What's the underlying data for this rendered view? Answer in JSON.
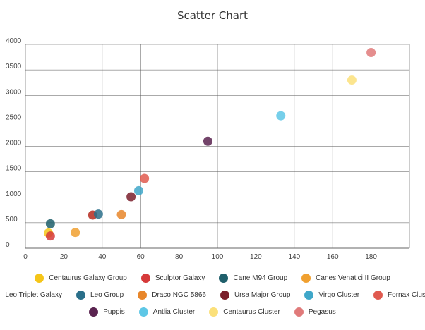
{
  "chart_data": {
    "type": "scatter",
    "title": "Scatter Chart",
    "xlabel": "",
    "ylabel": "",
    "xlim": [
      0,
      200
    ],
    "ylim": [
      0,
      4000
    ],
    "x_ticks": [
      0,
      20,
      40,
      60,
      80,
      100,
      120,
      140,
      160,
      180
    ],
    "y_ticks": [
      500,
      1000,
      1500,
      2000,
      2500,
      3000,
      3500,
      4000
    ],
    "grid": true,
    "legend_position": "bottom",
    "series": [
      {
        "name": "Centaurus Galaxy Group",
        "color": "#f5c518",
        "points": [
          {
            "x": 12,
            "y": 300
          }
        ]
      },
      {
        "name": "Sculptor Galaxy",
        "color": "#d63a3a",
        "points": [
          {
            "x": 13,
            "y": 240
          }
        ]
      },
      {
        "name": "Cane M94 Group",
        "color": "#1f5f6b",
        "points": [
          {
            "x": 13,
            "y": 480
          }
        ]
      },
      {
        "name": "Canes Venatici II Group",
        "color": "#f0a030",
        "points": [
          {
            "x": 26,
            "y": 310
          }
        ]
      },
      {
        "name": "Leo Triplet Galaxy",
        "color": "#b52a1e",
        "points": [
          {
            "x": 35,
            "y": 650
          }
        ]
      },
      {
        "name": "Leo Group",
        "color": "#2a6f8a",
        "points": [
          {
            "x": 38,
            "y": 670
          }
        ]
      },
      {
        "name": "Draco NGC 5866",
        "color": "#e8862a",
        "points": [
          {
            "x": 50,
            "y": 660
          }
        ]
      },
      {
        "name": "Ursa Major Group",
        "color": "#7a1f2b",
        "points": [
          {
            "x": 55,
            "y": 1010
          }
        ]
      },
      {
        "name": "Virgo Cluster",
        "color": "#3fa7c9",
        "points": [
          {
            "x": 59,
            "y": 1130
          }
        ]
      },
      {
        "name": "Fornax Cluster",
        "color": "#e05a4f",
        "points": [
          {
            "x": 62,
            "y": 1370
          }
        ]
      },
      {
        "name": "Puppis",
        "color": "#5a2350",
        "points": [
          {
            "x": 95,
            "y": 2100
          }
        ]
      },
      {
        "name": "Antlia Cluster",
        "color": "#5ec7e6",
        "points": [
          {
            "x": 133,
            "y": 2600
          }
        ]
      },
      {
        "name": "Centaurus Cluster",
        "color": "#fbe07a",
        "points": [
          {
            "x": 170,
            "y": 3300
          }
        ]
      },
      {
        "name": "Pegasus",
        "color": "#e07a7a",
        "points": [
          {
            "x": 180,
            "y": 3840
          }
        ]
      }
    ],
    "legend_rows": [
      [
        "Centaurus Galaxy Group",
        "Sculptor Galaxy",
        "Cane M94 Group",
        "Canes Venatici II Group"
      ],
      [
        "Leo Triplet Galaxy",
        "Leo Group",
        "Draco NGC 5866",
        "Ursa Major Group",
        "Virgo Cluster",
        "Fornax Cluster"
      ],
      [
        "Puppis",
        "Antlia Cluster",
        "Centaurus Cluster",
        "Pegasus"
      ]
    ]
  }
}
